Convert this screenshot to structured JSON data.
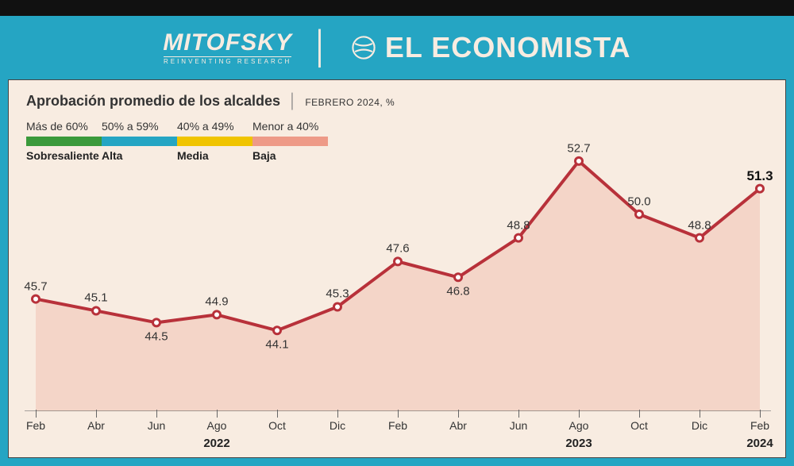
{
  "header": {
    "logo1_top": "MITOFSKY",
    "logo1_bot": "REINVENTING RESEARCH",
    "logo2": "EL ECONOMISTA"
  },
  "chart": {
    "type": "area",
    "title": "Aprobación promedio de los alcaldes",
    "subtitle": "FEBRERO 2024, %",
    "background_color": "#f8ece1",
    "frame_background": "#25a5c3",
    "top_bar_color": "#111111",
    "line_color": "#b8313a",
    "line_width": 4,
    "fill_color": "#f4d5c8",
    "fill_opacity": 1,
    "marker_color": "#ffffff",
    "marker_border": "#b8313a",
    "axis_color": "#555555",
    "ylim": [
      40,
      56
    ],
    "legend": {
      "items": [
        {
          "range": "Más de 60%",
          "label": "Sobresaliente",
          "color": "#3b9a3b"
        },
        {
          "range": "50% a 59%",
          "label": "Alta",
          "color": "#25a5c3"
        },
        {
          "range": "40% a 49%",
          "label": "Media",
          "color": "#f0c400"
        },
        {
          "range": "Menor a 40%",
          "label": "Baja",
          "color": "#ee9a87"
        }
      ]
    },
    "x_labels": [
      "Feb",
      "Abr",
      "Jun",
      "Ago",
      "Oct",
      "Dic",
      "Feb",
      "Abr",
      "Jun",
      "Ago",
      "Oct",
      "Dic",
      "Feb"
    ],
    "year_markers": [
      {
        "label": "2022",
        "under_index": 3
      },
      {
        "label": "2023",
        "under_index": 9
      },
      {
        "label": "2024",
        "under_index": 12
      }
    ],
    "values": [
      45.7,
      45.1,
      44.5,
      44.9,
      44.1,
      45.3,
      47.6,
      46.8,
      48.8,
      52.7,
      50.0,
      48.8,
      51.3
    ],
    "label_placement": [
      "above",
      "above",
      "below",
      "above",
      "below",
      "above",
      "above",
      "below",
      "above",
      "above",
      "above",
      "above",
      "above"
    ],
    "bold_last": true,
    "label_fontsize": 15
  }
}
